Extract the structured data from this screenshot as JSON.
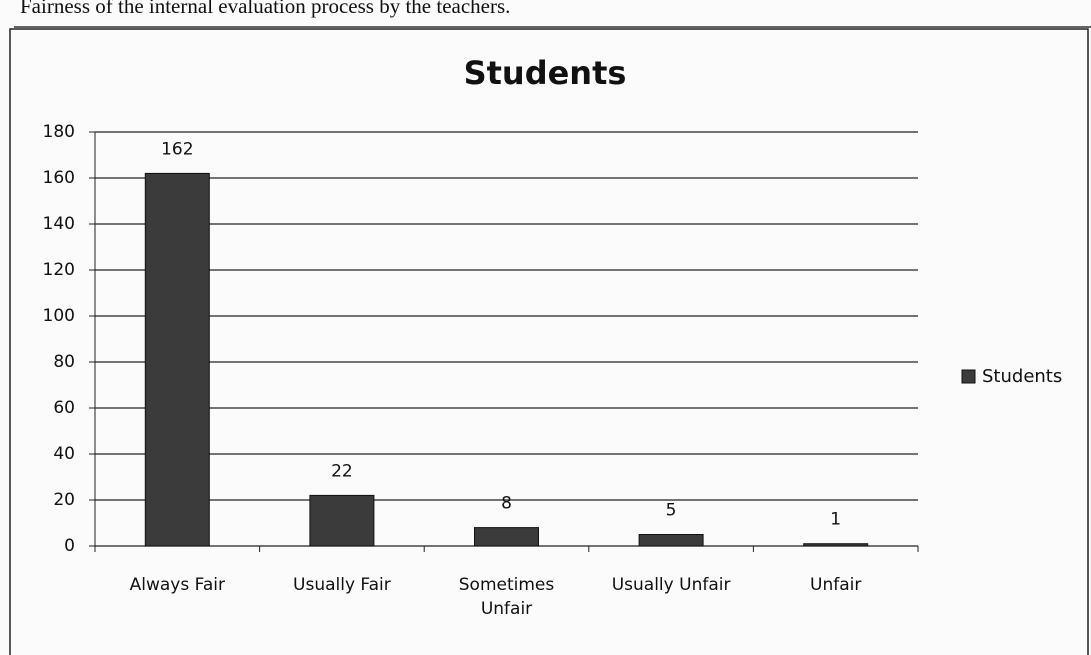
{
  "caption": "Fairness of the internal evaluation process by the teachers.",
  "chart_data": {
    "type": "bar",
    "title": "Students",
    "categories": [
      "Always Fair",
      "Usually Fair",
      "Sometimes Unfair",
      "Usually Unfair",
      "Unfair"
    ],
    "series": [
      {
        "name": "Students",
        "color": "#3b3b3b",
        "values": [
          162,
          22,
          8,
          5,
          1
        ]
      }
    ],
    "ylim": [
      0,
      180
    ],
    "yticks": [
      0,
      20,
      40,
      60,
      80,
      100,
      120,
      140,
      160,
      180
    ],
    "grid": true,
    "legend": "right"
  }
}
